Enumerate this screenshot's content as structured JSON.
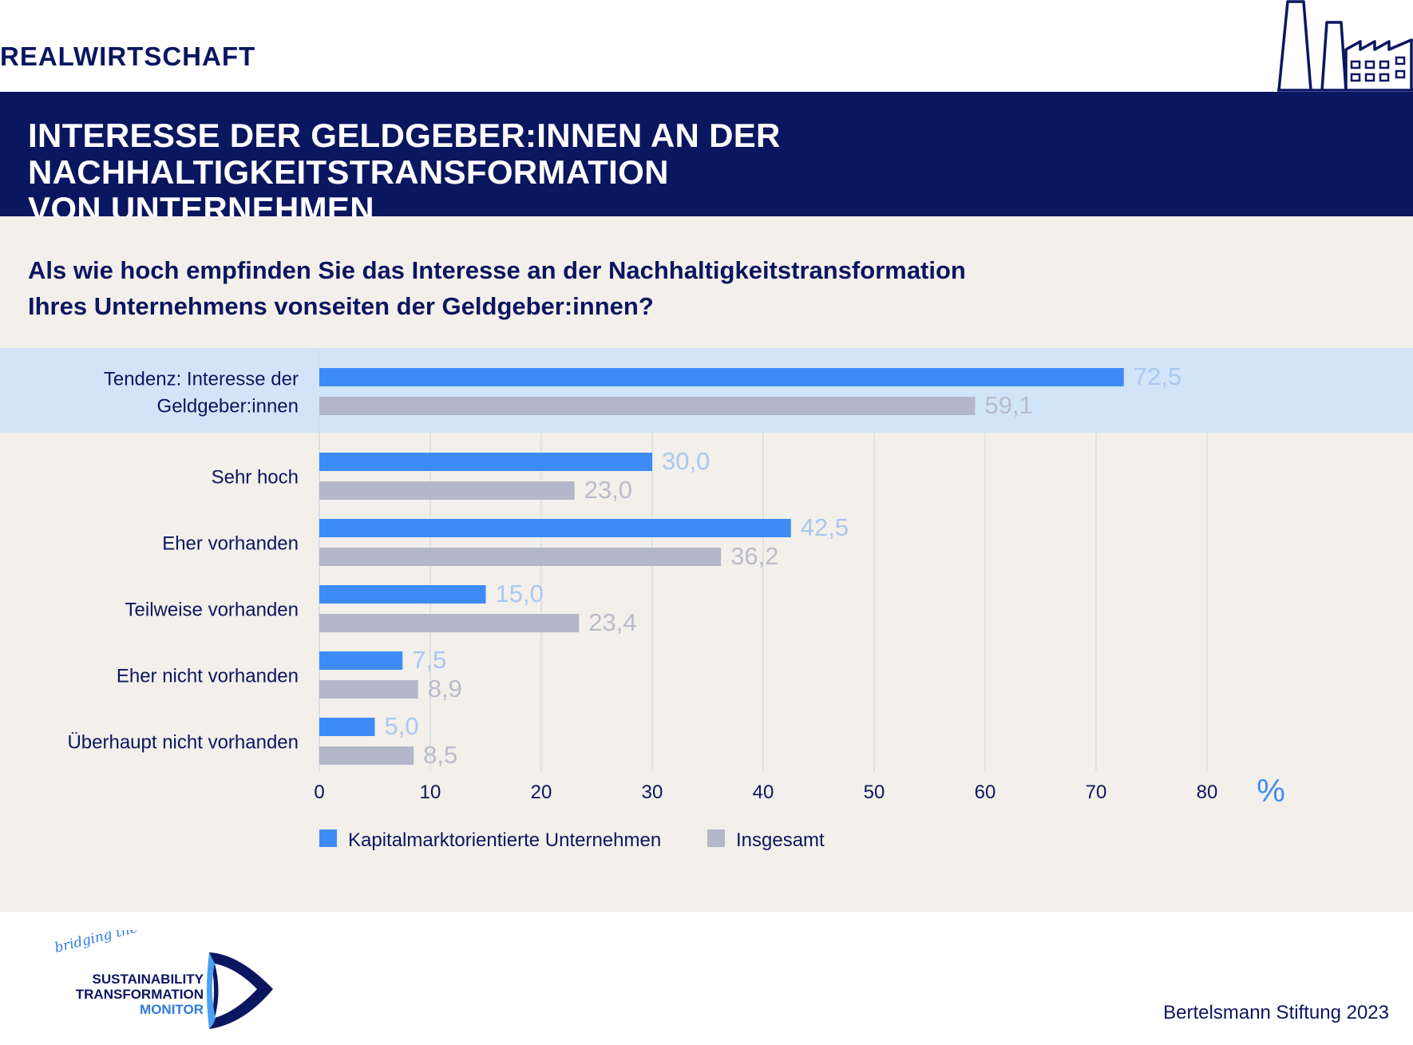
{
  "header": {
    "section": "REALWIRTSCHAFT",
    "title_line1": "INTERESSE DER GELDGEBER:INNEN AN DER NACHHALTIGKEITSTRANSFORMATION",
    "title_line2": "VON UNTERNEHMEN"
  },
  "question_line1": "Als wie hoch empfinden Sie das Interesse an der Nachhaltigkeitstransformation",
  "question_line2": "Ihres Unternehmens vonseiten der Geldgeber:innen?",
  "colors": {
    "navy": "#0b1660",
    "series1": "#3d8cf5",
    "series2": "#b3b7c9",
    "highlight_band": "#d2e5f8",
    "panel": "#f3efea",
    "label_series1": "#a9c8f0",
    "label_series2": "#b9bccb"
  },
  "chart_data": {
    "type": "bar",
    "orientation": "horizontal",
    "categories": [
      [
        "Tendenz: Interesse der",
        "Geldgeber:innen"
      ],
      [
        "Sehr hoch"
      ],
      [
        "Eher vorhanden"
      ],
      [
        "Teilweise vorhanden"
      ],
      [
        "Eher nicht vorhanden"
      ],
      [
        "Überhaupt nicht vorhanden"
      ]
    ],
    "highlighted_category_index": 0,
    "series": [
      {
        "name": "Kapitalmarktorientierte Unternehmen",
        "values": [
          72.5,
          30.0,
          42.5,
          15.0,
          7.5,
          5.0
        ],
        "labels": [
          "72,5",
          "30,0",
          "42,5",
          "15,0",
          "7,5",
          "5,0"
        ]
      },
      {
        "name": "Insgesamt",
        "values": [
          59.1,
          23.0,
          36.2,
          23.4,
          8.9,
          8.5
        ],
        "labels": [
          "59,1",
          "23,0",
          "36,2",
          "23,4",
          "8,9",
          "8,5"
        ]
      }
    ],
    "xticks": [
      0,
      10,
      20,
      30,
      40,
      50,
      60,
      70,
      80
    ],
    "xlim": [
      0,
      80
    ],
    "unit_label": "%",
    "grid": true,
    "legend_position": "bottom"
  },
  "footer": {
    "credit": "Bertelsmann Stiftung 2023",
    "logo_script": "bridging the worlds",
    "logo_line1": "SUSTAINABILITY",
    "logo_line2": "TRANSFORMATION",
    "logo_line3": "MONITOR"
  }
}
